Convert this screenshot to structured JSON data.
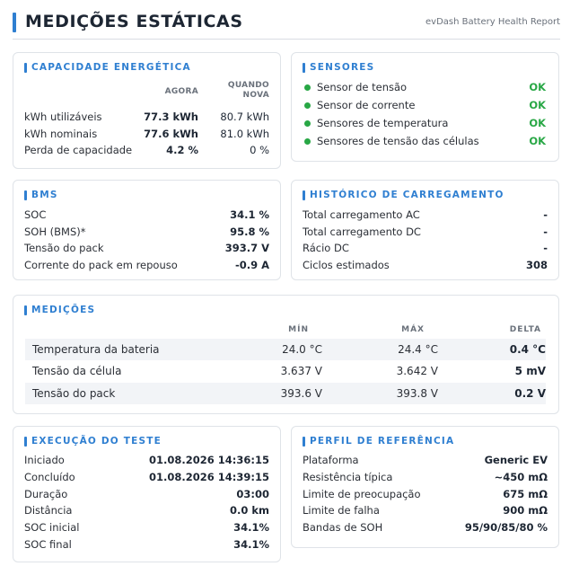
{
  "header": {
    "title": "MEDIÇÕES ESTÁTICAS",
    "subtitle": "evDash Battery Health Report"
  },
  "capacity": {
    "title": "CAPACIDADE ENERGÉTICA",
    "col_now": "AGORA",
    "col_new_line1": "QUANDO",
    "col_new_line2": "NOVA",
    "rows": [
      {
        "label": "kWh utilizáveis",
        "now": "77.3 kWh",
        "new": "80.7 kWh"
      },
      {
        "label": "kWh nominais",
        "now": "77.6 kWh",
        "new": "81.0 kWh"
      },
      {
        "label": "Perda de capacidade",
        "now": "4.2 %",
        "new": "0 %"
      }
    ]
  },
  "sensors": {
    "title": "SENSORES",
    "items": [
      {
        "label": "Sensor de tensão",
        "status": "OK"
      },
      {
        "label": "Sensor de corrente",
        "status": "OK"
      },
      {
        "label": "Sensores de temperatura",
        "status": "OK"
      },
      {
        "label": "Sensores de tensão das células",
        "status": "OK"
      }
    ]
  },
  "bms": {
    "title": "BMS",
    "rows": [
      {
        "label": "SOC",
        "value": "34.1 %"
      },
      {
        "label": "SOH (BMS)*",
        "value": "95.8 %"
      },
      {
        "label": "Tensão do pack",
        "value": "393.7 V"
      },
      {
        "label": "Corrente do pack em repouso",
        "value": "-0.9 A"
      }
    ]
  },
  "charging": {
    "title": "HISTÓRICO DE CARREGAMENTO",
    "rows": [
      {
        "label": "Total carregamento AC",
        "value": "-"
      },
      {
        "label": "Total carregamento DC",
        "value": "-"
      },
      {
        "label": "Rácio DC",
        "value": "-"
      },
      {
        "label": "Ciclos estimados",
        "value": "308"
      }
    ]
  },
  "measurements": {
    "title": "MEDIÇÕES",
    "col_min": "MÍN",
    "col_max": "MÁX",
    "col_delta": "DELTA",
    "rows": [
      {
        "name": "Temperatura da bateria",
        "min": "24.0 °C",
        "max": "24.4 °C",
        "delta": "0.4 °C"
      },
      {
        "name": "Tensão da célula",
        "min": "3.637 V",
        "max": "3.642 V",
        "delta": "5 mV"
      },
      {
        "name": "Tensão do pack",
        "min": "393.6 V",
        "max": "393.8 V",
        "delta": "0.2 V"
      }
    ]
  },
  "test_run": {
    "title": "EXECUÇÃO DO TESTE",
    "rows": [
      {
        "label": "Iniciado",
        "value": "01.08.2026 14:36:15"
      },
      {
        "label": "Concluído",
        "value": "01.08.2026 14:39:15"
      },
      {
        "label": "Duração",
        "value": "03:00"
      },
      {
        "label": "Distância",
        "value": "0.0 km"
      },
      {
        "label": "SOC inicial",
        "value": "34.1%"
      },
      {
        "label": "SOC final",
        "value": "34.1%"
      }
    ]
  },
  "reference": {
    "title": "PERFIL DE REFERÊNCIA",
    "rows": [
      {
        "label": "Plataforma",
        "value": "Generic EV"
      },
      {
        "label": "Resistência típica",
        "value": "~450 mΩ"
      },
      {
        "label": "Limite de preocupação",
        "value": "675 mΩ"
      },
      {
        "label": "Limite de falha",
        "value": "900 mΩ"
      },
      {
        "label": "Bandas de SOH",
        "value": "95/90/85/80 %"
      }
    ]
  },
  "colors": {
    "accent": "#2f7fd1",
    "ok": "#28a745",
    "now_value": "#2f86d8"
  }
}
